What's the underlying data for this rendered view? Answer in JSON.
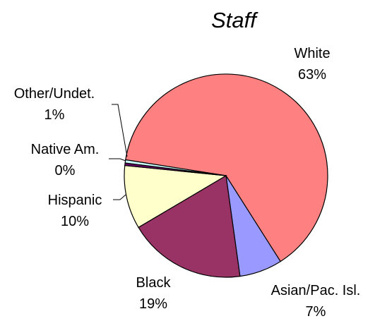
{
  "chart_data": {
    "type": "pie",
    "title": "Staff",
    "slices": [
      {
        "name": "White",
        "percent_label": "63%",
        "value": 63.5,
        "color": "#FF8080"
      },
      {
        "name": "Asian/Pac. Isl.",
        "percent_label": "7%",
        "value": 6.8,
        "color": "#9999FF"
      },
      {
        "name": "Black",
        "percent_label": "19%",
        "value": 18.7,
        "color": "#993366"
      },
      {
        "name": "Hispanic",
        "percent_label": "10%",
        "value": 10.1,
        "color": "#FFFFCC"
      },
      {
        "name": "Native Am.",
        "percent_label": "0%",
        "value": 0.4,
        "color": "#660066"
      },
      {
        "name": "Other/Undet.",
        "percent_label": "1%",
        "value": 0.5,
        "color": "#CCFFFF"
      }
    ],
    "legend": "none",
    "grid": false
  }
}
